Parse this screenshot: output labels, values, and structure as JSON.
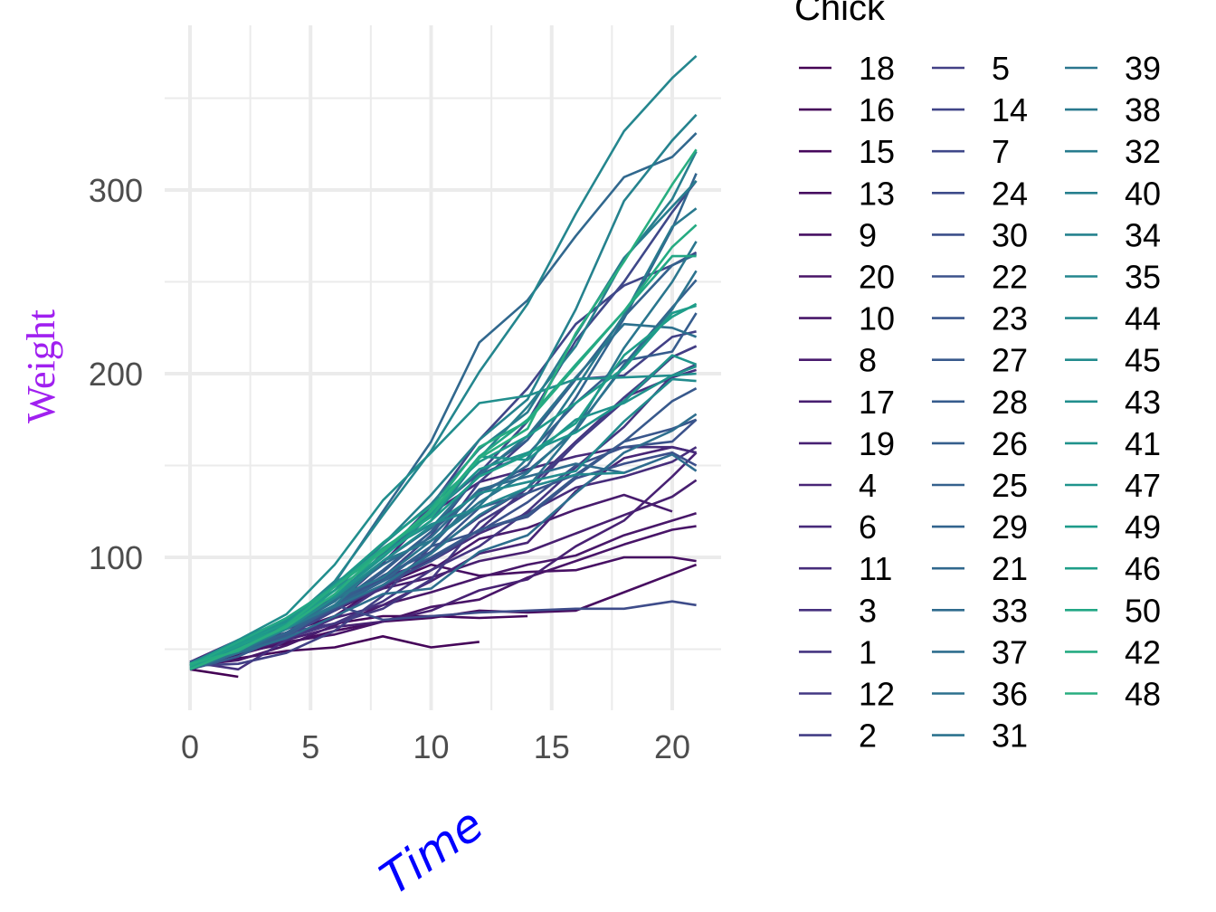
{
  "chart_data": {
    "type": "line",
    "title": "",
    "xlabel": "Time",
    "ylabel": "Weight",
    "xlabel_color": "#0000ff",
    "ylabel_color": "#a020f0",
    "x_ticks": [
      "0",
      "5",
      "10",
      "15",
      "20"
    ],
    "y_ticks": [
      "100",
      "200",
      "300"
    ],
    "xlim": [
      0,
      21
    ],
    "ylim": [
      35,
      373
    ],
    "grid": true,
    "legend_title": "Chick",
    "legend_position": "right",
    "x": [
      0,
      2,
      4,
      6,
      8,
      10,
      12,
      14,
      16,
      18,
      20,
      21
    ],
    "series": [
      {
        "name": "18",
        "color": "#440154",
        "values": [
          39,
          35,
          null,
          null,
          null,
          null,
          null,
          null,
          null,
          null,
          null,
          null
        ]
      },
      {
        "name": "16",
        "color": "#450559",
        "values": [
          41,
          45,
          49,
          51,
          57,
          51,
          54,
          null,
          null,
          null,
          null,
          null
        ]
      },
      {
        "name": "15",
        "color": "#46085c",
        "values": [
          41,
          49,
          56,
          64,
          68,
          68,
          67,
          68,
          null,
          null,
          null,
          null
        ]
      },
      {
        "name": "13",
        "color": "#470d60",
        "values": [
          41,
          48,
          53,
          60,
          65,
          67,
          71,
          70,
          71,
          81,
          91,
          96
        ]
      },
      {
        "name": "9",
        "color": "#471063",
        "values": [
          42,
          51,
          59,
          68,
          85,
          96,
          90,
          92,
          93,
          100,
          100,
          98
        ]
      },
      {
        "name": "20",
        "color": "#481467",
        "values": [
          41,
          47,
          54,
          58,
          65,
          73,
          77,
          89,
          98,
          107,
          115,
          117
        ]
      },
      {
        "name": "10",
        "color": "#481769",
        "values": [
          41,
          44,
          52,
          63,
          74,
          81,
          89,
          96,
          101,
          112,
          120,
          124
        ]
      },
      {
        "name": "8",
        "color": "#481b6d",
        "values": [
          42,
          50,
          61,
          71,
          84,
          93,
          110,
          116,
          126,
          134,
          125,
          null
        ]
      },
      {
        "name": "17",
        "color": "#481f70",
        "values": [
          42,
          51,
          61,
          72,
          83,
          89,
          98,
          103,
          113,
          123,
          133,
          142
        ]
      },
      {
        "name": "19",
        "color": "#482173",
        "values": [
          43,
          48,
          55,
          62,
          65,
          71,
          82,
          88,
          106,
          120,
          144,
          157
        ]
      },
      {
        "name": "4",
        "color": "#482576",
        "values": [
          42,
          49,
          56,
          67,
          74,
          87,
          102,
          108,
          136,
          154,
          160,
          157
        ]
      },
      {
        "name": "6",
        "color": "#472a7a",
        "values": [
          41,
          49,
          59,
          74,
          97,
          124,
          141,
          148,
          155,
          160,
          160,
          157
        ]
      },
      {
        "name": "11",
        "color": "#472d7b",
        "values": [
          43,
          55,
          64,
          77,
          89,
          98,
          113,
          124,
          138,
          144,
          152,
          160
        ]
      },
      {
        "name": "3",
        "color": "#46307e",
        "values": [
          43,
          39,
          55,
          67,
          84,
          99,
          115,
          138,
          163,
          187,
          198,
          202
        ]
      },
      {
        "name": "1",
        "color": "#453581",
        "values": [
          42,
          51,
          59,
          64,
          76,
          93,
          106,
          125,
          149,
          171,
          199,
          205
        ]
      },
      {
        "name": "12",
        "color": "#443983",
        "values": [
          41,
          49,
          56,
          64,
          72,
          88,
          119,
          135,
          162,
          185,
          209,
          215
        ]
      },
      {
        "name": "2",
        "color": "#433e85",
        "values": [
          40,
          49,
          58,
          72,
          84,
          103,
          122,
          138,
          162,
          187,
          209,
          215
        ]
      },
      {
        "name": "5",
        "color": "#424086",
        "values": [
          41,
          42,
          48,
          60,
          79,
          106,
          141,
          164,
          197,
          199,
          220,
          223
        ]
      },
      {
        "name": "14",
        "color": "#404588",
        "values": [
          41,
          49,
          62,
          79,
          101,
          128,
          164,
          192,
          227,
          248,
          259,
          266
        ]
      },
      {
        "name": "7",
        "color": "#3f4889",
        "values": [
          41,
          49,
          57,
          71,
          89,
          112,
          146,
          174,
          218,
          250,
          288,
          305
        ]
      },
      {
        "name": "24",
        "color": "#3e4c8a",
        "values": [
          42,
          52,
          58,
          74,
          66,
          68,
          70,
          71,
          72,
          72,
          76,
          74
        ]
      },
      {
        "name": "30",
        "color": "#3c4f8a",
        "values": [
          42,
          48,
          59,
          72,
          85,
          98,
          115,
          122,
          143,
          151,
          157,
          150
        ]
      },
      {
        "name": "22",
        "color": "#3b528b",
        "values": [
          41,
          55,
          64,
          72,
          88,
          106,
          114,
          130,
          150,
          160,
          163,
          175
        ]
      },
      {
        "name": "23",
        "color": "#39568c",
        "values": [
          43,
          52,
          61,
          73,
          90,
          103,
          127,
          135,
          145,
          163,
          170,
          175
        ]
      },
      {
        "name": "27",
        "color": "#38598c",
        "values": [
          39,
          46,
          58,
          73,
          87,
          100,
          115,
          123,
          144,
          163,
          185,
          192
        ]
      },
      {
        "name": "28",
        "color": "#365c8d",
        "values": [
          39,
          46,
          58,
          73,
          92,
          114,
          145,
          156,
          184,
          207,
          212,
          233
        ]
      },
      {
        "name": "26",
        "color": "#355f8d",
        "values": [
          42,
          48,
          57,
          74,
          93,
          114,
          136,
          147,
          169,
          205,
          236,
          251
        ]
      },
      {
        "name": "25",
        "color": "#34618d",
        "values": [
          40,
          49,
          62,
          78,
          102,
          124,
          146,
          164,
          197,
          231,
          259,
          265
        ]
      },
      {
        "name": "29",
        "color": "#32648e",
        "values": [
          39,
          48,
          59,
          74,
          87,
          106,
          134,
          150,
          187,
          230,
          279,
          309
        ]
      },
      {
        "name": "21",
        "color": "#31688e",
        "values": [
          40,
          50,
          62,
          86,
          125,
          163,
          217,
          240,
          275,
          307,
          318,
          331
        ]
      },
      {
        "name": "33",
        "color": "#2f6b8e",
        "values": [
          39,
          50,
          63,
          77,
          96,
          111,
          137,
          144,
          151,
          146,
          156,
          147
        ]
      },
      {
        "name": "37",
        "color": "#2e6e8e",
        "values": [
          41,
          48,
          56,
          68,
          80,
          83,
          103,
          112,
          135,
          157,
          169,
          178
        ]
      },
      {
        "name": "36",
        "color": "#2d718e",
        "values": [
          39,
          48,
          61,
          76,
          98,
          116,
          145,
          166,
          198,
          227,
          225,
          220
        ]
      },
      {
        "name": "31",
        "color": "#2c738e",
        "values": [
          42,
          53,
          62,
          73,
          85,
          102,
          123,
          138,
          170,
          204,
          235,
          256
        ]
      },
      {
        "name": "39",
        "color": "#2a768e",
        "values": [
          42,
          50,
          61,
          78,
          89,
          109,
          130,
          146,
          170,
          214,
          250,
          272
        ]
      },
      {
        "name": "38",
        "color": "#29798e",
        "values": [
          41,
          49,
          61,
          74,
          98,
          109,
          128,
          154,
          192,
          232,
          280,
          290
        ]
      },
      {
        "name": "32",
        "color": "#287c8e",
        "values": [
          41,
          49,
          65,
          82,
          107,
          129,
          159,
          179,
          221,
          263,
          291,
          305
        ]
      },
      {
        "name": "40",
        "color": "#277f8e",
        "values": [
          41,
          55,
          66,
          79,
          101,
          120,
          154,
          182,
          215,
          262,
          295,
          321
        ]
      },
      {
        "name": "34",
        "color": "#25828e",
        "values": [
          41,
          49,
          63,
          85,
          107,
          134,
          164,
          186,
          235,
          294,
          327,
          341
        ]
      },
      {
        "name": "35",
        "color": "#24868e",
        "values": [
          41,
          53,
          64,
          87,
          123,
          158,
          201,
          238,
          287,
          332,
          361,
          373
        ]
      },
      {
        "name": "44",
        "color": "#23888e",
        "values": [
          42,
          51,
          65,
          86,
          103,
          118,
          127,
          138,
          145,
          146,
          null,
          null
        ]
      },
      {
        "name": "45",
        "color": "#228b8d",
        "values": [
          41,
          50,
          61,
          78,
          98,
          117,
          135,
          141,
          147,
          174,
          197,
          196
        ]
      },
      {
        "name": "43",
        "color": "#218e8d",
        "values": [
          42,
          55,
          69,
          96,
          131,
          157,
          184,
          188,
          197,
          198,
          199,
          200
        ]
      },
      {
        "name": "41",
        "color": "#20928c",
        "values": [
          42,
          51,
          66,
          85,
          103,
          124,
          155,
          153,
          175,
          184,
          199,
          204
        ]
      },
      {
        "name": "47",
        "color": "#1f948c",
        "values": [
          41,
          53,
          66,
          79,
          100,
          123,
          148,
          157,
          168,
          185,
          210,
          205
        ]
      },
      {
        "name": "49",
        "color": "#1e9b8a",
        "values": [
          40,
          53,
          64,
          85,
          108,
          128,
          152,
          166,
          184,
          203,
          233,
          237
        ]
      },
      {
        "name": "46",
        "color": "#1f9e89",
        "values": [
          40,
          52,
          62,
          82,
          101,
          120,
          144,
          156,
          173,
          210,
          231,
          238
        ]
      },
      {
        "name": "50",
        "color": "#22a785",
        "values": [
          41,
          54,
          67,
          84,
          105,
          122,
          155,
          175,
          205,
          234,
          264,
          264
        ]
      },
      {
        "name": "42",
        "color": "#25ab82",
        "values": [
          42,
          49,
          63,
          84,
          103,
          126,
          160,
          174,
          204,
          234,
          269,
          281
        ]
      },
      {
        "name": "48",
        "color": "#28ae80",
        "values": [
          39,
          50,
          62,
          80,
          104,
          125,
          154,
          170,
          222,
          261,
          303,
          322
        ]
      }
    ]
  }
}
